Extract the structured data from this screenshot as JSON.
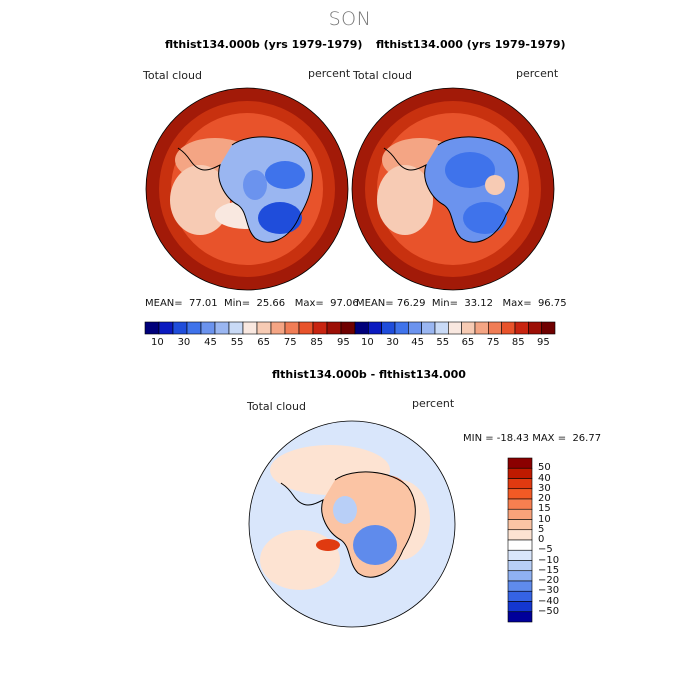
{
  "title": "SON",
  "panels": [
    {
      "title": "flthist134.000b (yrs 1979-1979)",
      "variable": "Total cloud",
      "units": "percent",
      "stats": {
        "mean_label": "MEAN=",
        "mean": "77.01",
        "min_label": "Min=",
        "min": "25.66",
        "max_label": "Max=",
        "max": "97.06"
      }
    },
    {
      "title": "flthist134.000 (yrs 1979-1979)",
      "variable": "Total cloud",
      "units": "percent",
      "stats": {
        "mean_label": "MEAN=",
        "mean": "76.29",
        "min_label": "Min=",
        "min": "33.12",
        "max_label": "Max=",
        "max": "96.75"
      }
    }
  ],
  "colorbar_top": {
    "labels": [
      "10",
      "30",
      "45",
      "55",
      "65",
      "75",
      "85",
      "95"
    ],
    "colors": [
      "#00007a",
      "#0b1ac0",
      "#1f4ddb",
      "#3f73eb",
      "#6b93ee",
      "#9ab6f1",
      "#c9daf6",
      "#f9e8e0",
      "#f7cbb4",
      "#f4a584",
      "#f07d56",
      "#e8532b",
      "#c82410",
      "#9c0f05",
      "#6f0000"
    ]
  },
  "diff": {
    "title": "flthist134.000b - flthist134.000",
    "variable": "Total cloud",
    "units": "percent",
    "minmax": "MIN = -18.43 MAX =  26.77",
    "colorbar": {
      "labels": [
        "50",
        "40",
        "30",
        "20",
        "15",
        "10",
        "5",
        "0",
        "−5",
        "−10",
        "−15",
        "−20",
        "−30",
        "−40",
        "−50"
      ],
      "colors": [
        "#8b0000",
        "#bf1a00",
        "#e03a10",
        "#f25a25",
        "#f77f50",
        "#f9a27a",
        "#fbc4a4",
        "#fde3d2",
        "#ffffff",
        "#d9e6fb",
        "#b8cff7",
        "#8fb1f2",
        "#5f8bec",
        "#3563e4",
        "#1437d0",
        "#00009a"
      ]
    }
  }
}
